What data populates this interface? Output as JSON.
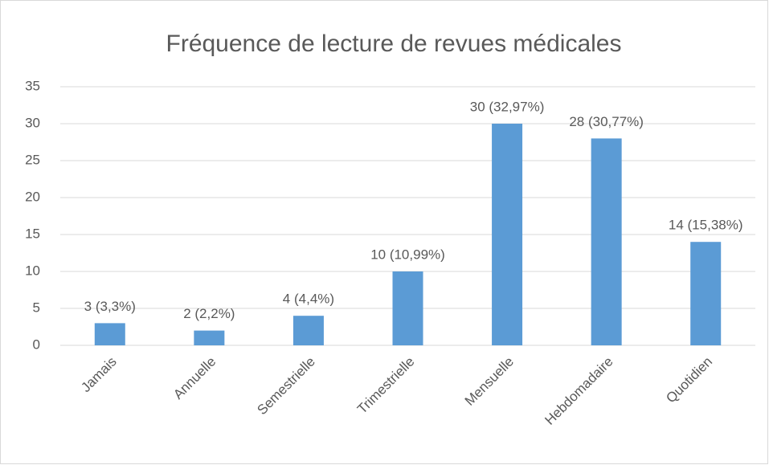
{
  "chart_data": {
    "type": "bar",
    "title": "Fréquence de lecture de revues médicales",
    "categories": [
      "Jamais",
      "Annuelle",
      "Semestrielle",
      "Trimestrielle",
      "Mensuelle",
      "Hebdomadaire",
      "Quotidien"
    ],
    "values": [
      3,
      2,
      4,
      10,
      30,
      28,
      14
    ],
    "value_labels": [
      "3 (3,3%)",
      "2 (2,2%)",
      "4 (4,4%)",
      "10 (10,99%)",
      "30 (32,97%)",
      "28 (30,77%)",
      "14 (15,38%)"
    ],
    "color": "#5b9bd5",
    "ylim": [
      0,
      35
    ],
    "yticks": [
      0,
      5,
      10,
      15,
      20,
      25,
      30,
      35
    ],
    "grid": true
  }
}
